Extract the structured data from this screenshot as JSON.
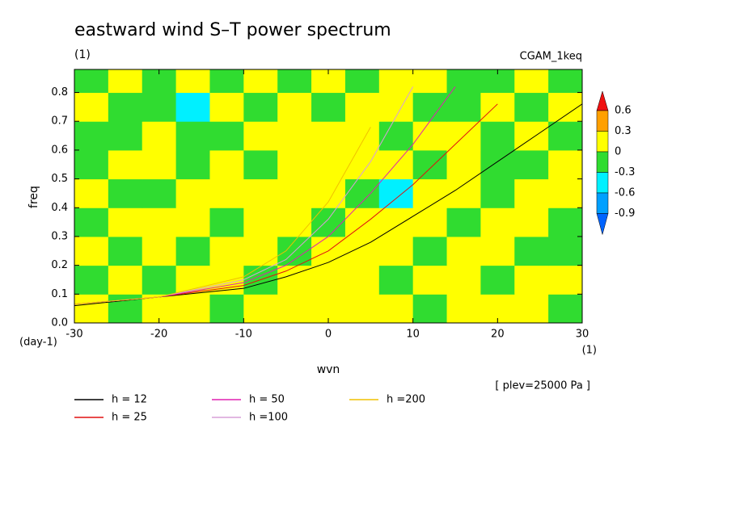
{
  "chart_data": {
    "type": "contour",
    "title": "eastward wind S–T power spectrum",
    "subtitle": "(1)",
    "experiment": "CGAM_1keq",
    "x_label": "wvn",
    "x_unit": "(1)",
    "y_label": "freq",
    "y_unit": "(day-1)",
    "level_note": "[ plev=25000 Pa ]",
    "xlim": [
      -30,
      30
    ],
    "ylim": [
      0,
      0.88
    ],
    "xticks": [
      -30,
      -20,
      -10,
      0,
      10,
      20,
      30
    ],
    "yticks": [
      {
        "value": 0,
        "label": "0.0"
      },
      0.1,
      0.2,
      0.3,
      0.4,
      0.5,
      0.6,
      0.7,
      0.8
    ],
    "levels": [
      -0.9,
      -0.6,
      -0.3,
      0,
      0.3,
      0.6
    ],
    "level_colors": [
      "#0064ff",
      "#00a0ff",
      "#00f0ff",
      "#30dc30",
      "#ffff00",
      "#ffa000",
      "#f01010"
    ],
    "grid_x": [
      -28,
      -24,
      -20,
      -16,
      -12,
      -8,
      -4,
      0,
      4,
      8,
      12,
      16,
      20,
      24,
      28
    ],
    "grid_y": [
      0.05,
      0.15,
      0.25,
      0.35,
      0.45,
      0.55,
      0.65,
      0.75,
      0.85
    ],
    "z": [
      [
        0.1,
        -0.1,
        0.1,
        0.1,
        -0.1,
        0.1,
        0.1,
        0.1,
        0.1,
        0.1,
        -0.1,
        0.1,
        0.1,
        0.1,
        -0.1
      ],
      [
        -0.1,
        0.1,
        -0.1,
        0.1,
        0.1,
        -0.1,
        0.1,
        0.1,
        0.1,
        -0.1,
        0.1,
        0.1,
        -0.1,
        0.1,
        0.1
      ],
      [
        0.1,
        -0.1,
        0.1,
        -0.1,
        0.1,
        0.1,
        -0.1,
        0.1,
        0.1,
        0.1,
        -0.1,
        0.1,
        0.1,
        -0.1,
        -0.1
      ],
      [
        -0.1,
        0.1,
        0.1,
        0.1,
        -0.1,
        0.1,
        0.1,
        -0.1,
        0.1,
        0.1,
        0.1,
        -0.1,
        0.1,
        0.1,
        -0.1
      ],
      [
        0.1,
        -0.1,
        -0.1,
        0.1,
        0.1,
        0.1,
        0.1,
        0.1,
        -0.1,
        -0.4,
        0.1,
        0.1,
        -0.1,
        0.1,
        0.1
      ],
      [
        -0.1,
        0.1,
        0.1,
        -0.1,
        0.1,
        -0.1,
        0.1,
        0.1,
        0.1,
        0.1,
        -0.1,
        0.1,
        -0.1,
        -0.1,
        0.1
      ],
      [
        -0.1,
        -0.1,
        0.1,
        -0.1,
        -0.1,
        0.1,
        0.1,
        0.1,
        0.1,
        -0.1,
        0.1,
        0.1,
        -0.1,
        0.1,
        -0.1
      ],
      [
        0.1,
        -0.1,
        -0.1,
        -0.4,
        0.1,
        -0.1,
        0.1,
        -0.1,
        0.1,
        0.1,
        -0.1,
        -0.1,
        0.1,
        -0.1,
        0.1
      ],
      [
        -0.1,
        0.1,
        -0.1,
        0.1,
        -0.1,
        0.1,
        -0.1,
        0.1,
        -0.1,
        0.1,
        0.1,
        -0.1,
        -0.1,
        0.1,
        -0.1
      ]
    ],
    "x": [
      -30,
      -20,
      -10,
      -5,
      0,
      5,
      10,
      15,
      20,
      25,
      30
    ],
    "series": [
      {
        "name": "h = 12",
        "color": "#000000",
        "values": [
          0.06,
          0.09,
          0.12,
          0.16,
          0.21,
          0.28,
          0.37,
          0.46,
          0.56,
          0.66,
          0.76
        ]
      },
      {
        "name": "h = 25",
        "color": "#e01010",
        "values": [
          0.065,
          0.09,
          0.13,
          0.18,
          0.25,
          0.36,
          0.48,
          0.62,
          0.76,
          null,
          null
        ]
      },
      {
        "name": "h = 50",
        "color": "#e020b0",
        "values": [
          0.065,
          0.09,
          0.14,
          0.2,
          0.3,
          0.45,
          0.62,
          0.82,
          null,
          null,
          null
        ]
      },
      {
        "name": "h =100",
        "color": "#d8a0d8",
        "values": [
          0.065,
          0.09,
          0.15,
          0.22,
          0.36,
          0.56,
          0.82,
          null,
          null,
          null,
          null
        ]
      },
      {
        "name": "h =200",
        "color": "#f0c000",
        "values": [
          0.065,
          0.09,
          0.16,
          0.25,
          0.42,
          0.68,
          null,
          null,
          null,
          null,
          null
        ]
      }
    ]
  }
}
